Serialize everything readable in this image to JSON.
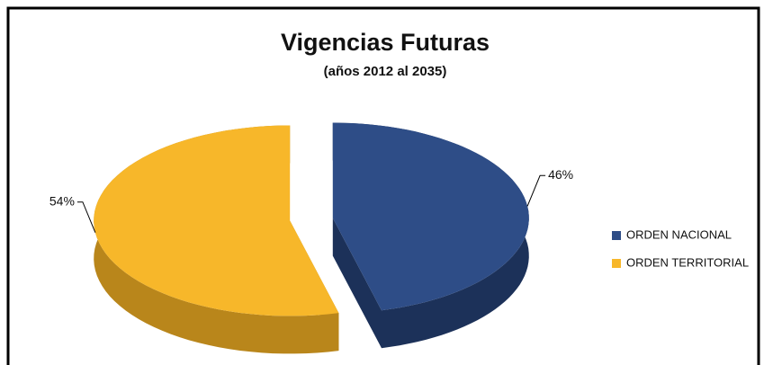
{
  "chart_data": {
    "type": "pie",
    "title": "Vigencias Futuras",
    "subtitle": "(años 2012 al 2035)",
    "categories": [
      "ORDEN NACIONAL",
      "ORDEN TERRITORIAL"
    ],
    "values": [
      46,
      54
    ],
    "value_labels": [
      "46%",
      "54%"
    ],
    "colors": [
      "#2e4d87",
      "#f7b72a"
    ],
    "side_colors": [
      "#1c3159",
      "#b9861b"
    ],
    "legend": "right",
    "explode": true
  }
}
